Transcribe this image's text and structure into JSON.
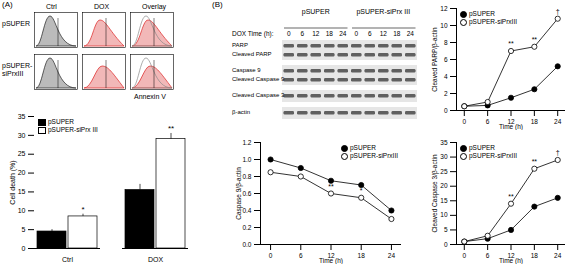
{
  "panels": [
    "(A)",
    "(B)"
  ],
  "flow_cytometry": {
    "columns": [
      "Ctrl",
      "DOX",
      "Overlay"
    ],
    "rows": [
      "pSUPER",
      "pSUPER-siPrxIII"
    ],
    "x_label": "Annexin V"
  },
  "western_blot": {
    "groups": [
      "pSUPER",
      "pSUPER-siPrx III"
    ],
    "time_label": "DOX Time (h):",
    "times": [
      0,
      6,
      12,
      18,
      24
    ],
    "strips": [
      [
        "PARP",
        "Cleaved PARP"
      ],
      [
        "Caspase 9",
        "Cleaved Caspase 9"
      ],
      [
        "Cleaved Caspase 3"
      ],
      [
        "β-actin"
      ]
    ]
  },
  "chart_data": [
    {
      "type": "bar",
      "y_label": "Cell death (%)",
      "categories": [
        "Ctrl",
        "DOX"
      ],
      "series": [
        {
          "name": "pSUPER",
          "color": "#000000",
          "values": [
            4.5,
            15.5
          ],
          "errors": [
            0.5,
            1.5
          ]
        },
        {
          "name": "pSUPER-siPrx III",
          "color": "#ffffff",
          "values": [
            8.5,
            29
          ],
          "errors": [
            0.6,
            1.5
          ]
        }
      ],
      "annotations": [
        {
          "text": "*",
          "category": "Ctrl",
          "series": "pSUPER-siPrx III"
        },
        {
          "text": "**",
          "category": "DOX",
          "series": "pSUPER-siPrx III"
        }
      ],
      "ylim": [
        0,
        35
      ],
      "yticks": [
        0,
        5,
        10,
        15,
        20,
        25,
        30,
        35
      ],
      "legend": "top-left"
    },
    {
      "type": "line",
      "x_label": "Time (h)",
      "y_label": "Cleaved PARP/β-actin",
      "x": [
        0,
        6,
        12,
        18,
        24
      ],
      "series": [
        {
          "name": "pSUPER",
          "color": "#000000",
          "marker": "circle",
          "values": [
            0.5,
            0.6,
            1.5,
            2.5,
            5.2
          ]
        },
        {
          "name": "pSUPER-siPrxIII",
          "color": "#ffffff",
          "marker": "circle",
          "values": [
            0.5,
            1.0,
            7.0,
            7.5,
            10.8
          ]
        }
      ],
      "annotations": [
        {
          "text": "**",
          "x": 12,
          "series": "pSUPER-siPrxIII"
        },
        {
          "text": "**",
          "x": 18,
          "series": "pSUPER-siPrxIII"
        },
        {
          "text": "†",
          "x": 24,
          "series": "pSUPER-siPrxIII"
        }
      ],
      "xlim": [
        -2,
        26
      ],
      "xticks": [
        0,
        6,
        12,
        18,
        24
      ],
      "ylim": [
        0,
        12
      ],
      "yticks": [
        0,
        2,
        4,
        6,
        8,
        10,
        12
      ],
      "legend": "top-left"
    },
    {
      "type": "line",
      "x_label": "Time (h)",
      "y_label": "Caspase 9/β-actin",
      "x": [
        0,
        6,
        12,
        18,
        24
      ],
      "series": [
        {
          "name": "pSUPER",
          "color": "#000000",
          "marker": "circle",
          "values": [
            1.0,
            0.9,
            0.75,
            0.7,
            0.4
          ]
        },
        {
          "name": "pSUPER-siPrxIII",
          "color": "#ffffff",
          "marker": "circle",
          "values": [
            0.85,
            0.8,
            0.6,
            0.55,
            0.3
          ]
        }
      ],
      "annotations": [
        {
          "text": "**",
          "x": 12,
          "series": "pSUPER-siPrxIII"
        },
        {
          "text": "*",
          "x": 18,
          "series": "pSUPER-siPrxIII"
        }
      ],
      "xlim": [
        -2,
        26
      ],
      "xticks": [
        0,
        6,
        12,
        18,
        24
      ],
      "ylim": [
        0,
        1.2
      ],
      "yticks": [
        {
          "value": 0,
          "label": "0.0"
        },
        0.2,
        0.4,
        0.6,
        0.8,
        {
          "value": 1,
          "label": "1.0"
        },
        1.2
      ],
      "legend": "top-right"
    },
    {
      "type": "line",
      "x_label": "Time (h)",
      "y_label": "Cleaved Caspase 3/β-actin",
      "x": [
        0,
        6,
        12,
        18,
        24
      ],
      "series": [
        {
          "name": "pSUPER",
          "color": "#000000",
          "marker": "circle",
          "values": [
            1,
            2,
            5,
            13,
            16
          ]
        },
        {
          "name": "pSUPER-siPrxIII",
          "color": "#ffffff",
          "marker": "circle",
          "values": [
            1,
            3,
            14,
            26,
            29
          ]
        }
      ],
      "annotations": [
        {
          "text": "**",
          "x": 12,
          "series": "pSUPER-siPrxIII"
        },
        {
          "text": "**",
          "x": 18,
          "series": "pSUPER-siPrxIII"
        },
        {
          "text": "†",
          "x": 24,
          "series": "pSUPER-siPrxIII"
        }
      ],
      "xlim": [
        -2,
        26
      ],
      "xticks": [
        0,
        6,
        12,
        18,
        24
      ],
      "ylim": [
        0,
        35
      ],
      "yticks": [
        0,
        5,
        10,
        15,
        20,
        25,
        30,
        35
      ],
      "legend": "top-left"
    }
  ]
}
